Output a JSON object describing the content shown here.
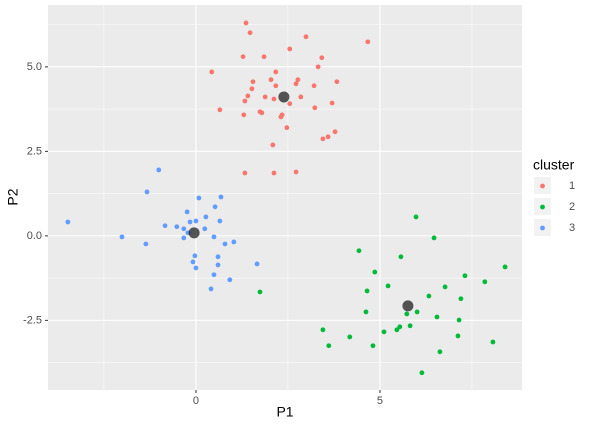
{
  "chart_data": {
    "type": "scatter",
    "x_label": "P1",
    "y_label": "P2",
    "legend_title": "cluster",
    "xlim": [
      -4.02,
      8.86
    ],
    "ylim": [
      -4.56,
      6.83
    ],
    "xticks": [
      0,
      5
    ],
    "yticks": [
      -2.5,
      {
        "value": 0,
        "label": "0.0"
      },
      2.5,
      {
        "value": 5,
        "label": "5.0"
      }
    ],
    "grid": true,
    "legend": "right",
    "series": [
      {
        "name": "1",
        "color": "#F8766D",
        "x": [
          1.36,
          1.47,
          2.99,
          4.67,
          2.55,
          1.28,
          1.85,
          3.42,
          0.43,
          2.17,
          3.32,
          1.55,
          2.04,
          2.77,
          2.72,
          1.52,
          2.17,
          3.83,
          3.21,
          1.41,
          1.88,
          2.12,
          2.85,
          3.23,
          2.55,
          1.33,
          0.65,
          1.74,
          1.3,
          1.79,
          2.31,
          3.7,
          2.34,
          2.47,
          3.78,
          3.59,
          3.45,
          2.09,
          1.33,
          2.12,
          2.72
        ],
        "values": [
          6.3,
          6.01,
          5.89,
          5.74,
          5.53,
          5.3,
          5.3,
          5.27,
          4.85,
          4.85,
          5.0,
          4.56,
          4.62,
          4.62,
          4.5,
          4.35,
          4.44,
          4.56,
          4.44,
          4.14,
          4.11,
          4.05,
          4.11,
          3.79,
          3.91,
          3.99,
          3.73,
          3.67,
          3.58,
          3.64,
          3.52,
          3.93,
          3.58,
          3.2,
          3.08,
          2.93,
          2.87,
          2.69,
          1.86,
          1.86,
          1.89
        ]
      },
      {
        "name": "2",
        "color": "#00BA38",
        "x": [
          5.98,
          6.47,
          4.43,
          8.4,
          4.86,
          7.31,
          5.57,
          5.22,
          6.77,
          6.33,
          7.85,
          4.65,
          7.2,
          4.62,
          6.01,
          7.15,
          6.55,
          5.73,
          3.45,
          5.11,
          5.46,
          5.54,
          5.82,
          4.18,
          7.12,
          3.61,
          4.81,
          8.07,
          6.63,
          6.14,
          1.74
        ],
        "values": [
          0.56,
          -0.06,
          -0.44,
          -0.92,
          -1.07,
          -1.18,
          -0.62,
          -1.48,
          -1.51,
          -1.78,
          -1.36,
          -1.63,
          -1.86,
          -2.25,
          -2.25,
          -2.49,
          -2.4,
          -2.31,
          -2.78,
          -2.84,
          -2.78,
          -2.69,
          -2.66,
          -2.99,
          -2.96,
          -3.25,
          -3.25,
          -3.14,
          -3.43,
          -4.05,
          -1.66
        ]
      },
      {
        "name": "3",
        "color": "#619CFF",
        "x": [
          -1.01,
          -1.33,
          0.08,
          0.68,
          -0.24,
          0.52,
          0.27,
          -3.48,
          -0.52,
          -0.16,
          0.24,
          0.65,
          -0.33,
          0,
          -0.84,
          -2.01,
          -1.36,
          -0.33,
          -0.22,
          0.49,
          1.03,
          0.79,
          -0.03,
          0.6,
          -0.08,
          1.66,
          0.6,
          0,
          0.49,
          0.92,
          0.41
        ],
        "values": [
          1.95,
          1.3,
          1.12,
          1.15,
          0.71,
          0.86,
          0.56,
          0.41,
          0.27,
          0.41,
          0.21,
          0.44,
          0.21,
          0.44,
          0.3,
          -0.03,
          -0.24,
          -0.06,
          0.09,
          -0.03,
          -0.18,
          -0.24,
          -0.59,
          -0.62,
          -0.77,
          -0.83,
          -0.86,
          -0.95,
          -1.15,
          -1.3,
          -1.57
        ]
      }
    ],
    "centers": {
      "color": "#000000",
      "x": [
        2.39,
        5.76,
        -0.05
      ],
      "y": [
        4.11,
        -2.07,
        0.09
      ]
    }
  }
}
